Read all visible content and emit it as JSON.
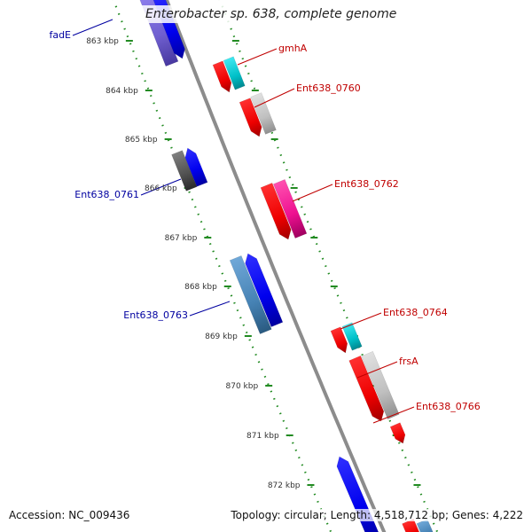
{
  "title": "Enterobacter sp. 638, complete genome",
  "footer": {
    "accession": "Accession: NC_009436",
    "topology": "Topology: circular; Length: 4,518,712 bp; Genes: 4,222"
  },
  "ticks": [
    "863 kbp",
    "864 kbp",
    "865 kbp",
    "866 kbp",
    "867 kbp",
    "868 kbp",
    "869 kbp",
    "870 kbp",
    "871 kbp",
    "872 kbp"
  ],
  "gene_labels": {
    "fadE": "fadE",
    "gmhA": "gmhA",
    "ent0760": "Ent638_0760",
    "ent0761": "Ent638_0761",
    "ent0762": "Ent638_0762",
    "ent0763": "Ent638_0763",
    "ent0764": "Ent638_0764",
    "frsA": "frsA",
    "ent0766": "Ent638_0766"
  },
  "colors": {
    "backbone": "#8c8c8c",
    "tick_dots": "#228b22",
    "label_left": "#0000a0",
    "label_right": "#c00000",
    "gene_red": "#ee0000",
    "gene_blue": "#0000ee",
    "gene_cyan": "#00c0c8",
    "gene_gray": "#c0c0c0",
    "gene_magenta": "#ee1090",
    "gene_steel": "#4682b4",
    "gene_slate": "#7060d0",
    "gene_dark": "#505050"
  }
}
